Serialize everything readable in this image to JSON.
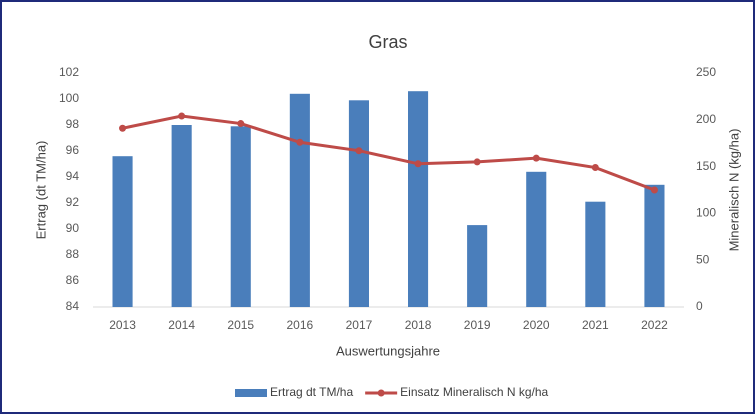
{
  "chart_data": {
    "type": "bar-line",
    "title": "Gras",
    "xlabel": "Auswertungsjahre",
    "ylabel": "Ertrag (dt TM/ha)",
    "y2label": "Mineralisch N (kg/ha)",
    "categories": [
      "2013",
      "2014",
      "2015",
      "2016",
      "2017",
      "2018",
      "2019",
      "2020",
      "2021",
      "2022"
    ],
    "series": [
      {
        "name": "Ertrag dt TM/ha",
        "type": "bar",
        "color": "#4a7ebb",
        "values": [
          95.6,
          98.0,
          97.9,
          100.4,
          99.9,
          100.6,
          90.3,
          94.4,
          92.1,
          93.4
        ]
      },
      {
        "name": "Einsatz Mineralisch N kg/ha",
        "type": "line",
        "axis": "y2",
        "color": "#be4b48",
        "values": [
          191,
          204,
          196,
          176,
          167,
          153,
          155,
          159,
          149,
          125
        ]
      }
    ],
    "ylim": [
      84,
      102
    ],
    "yticks": [
      84,
      86,
      88,
      90,
      92,
      94,
      96,
      98,
      100,
      102
    ],
    "y2lim": [
      0,
      250
    ],
    "y2ticks": [
      0,
      50,
      100,
      150,
      200,
      250
    ],
    "grid": false,
    "legend": "bottom"
  }
}
